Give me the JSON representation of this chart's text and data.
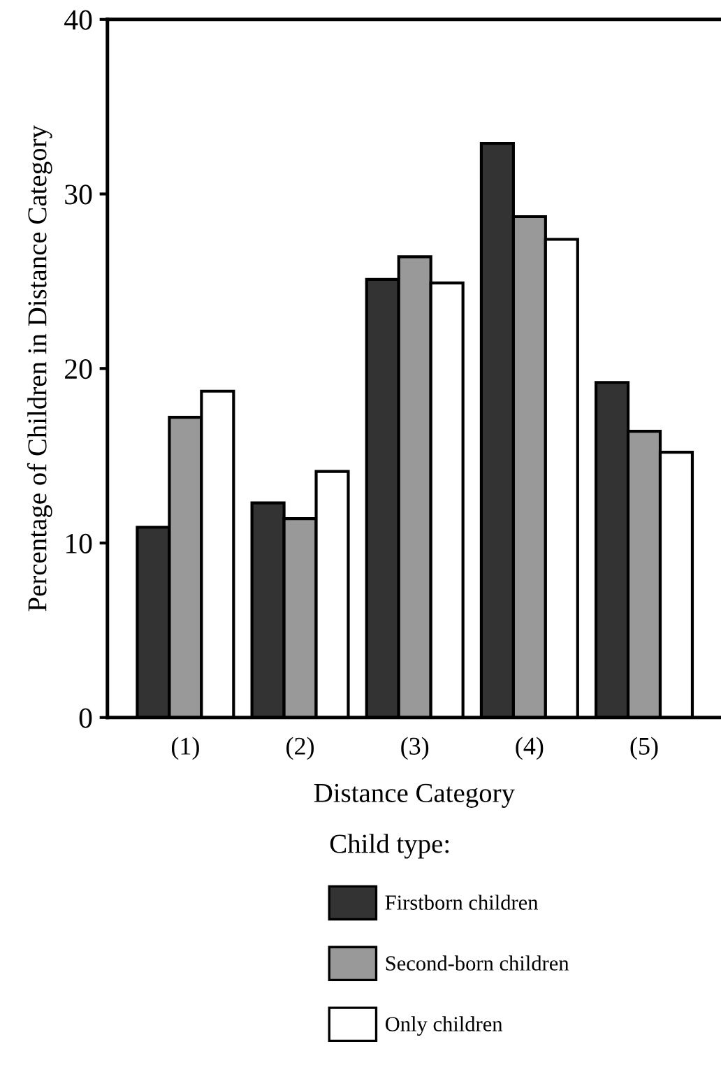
{
  "chart_data": {
    "type": "bar",
    "categories": [
      "(1)",
      "(2)",
      "(3)",
      "(4)",
      "(5)"
    ],
    "series": [
      {
        "name": "Firstborn children",
        "color": "#333333",
        "values": [
          10.9,
          12.3,
          25.1,
          32.9,
          19.2
        ]
      },
      {
        "name": "Second-born children",
        "color": "#999999",
        "values": [
          17.2,
          11.4,
          26.4,
          28.7,
          16.4
        ]
      },
      {
        "name": "Only children",
        "color": "#ffffff",
        "values": [
          18.7,
          14.1,
          24.9,
          27.4,
          15.2
        ]
      }
    ],
    "xlabel": "Distance Category",
    "ylabel": "Percentage of Children in Distance Category",
    "legend_title": "Child type:",
    "legend": "bottom",
    "ylim": [
      0,
      40
    ],
    "yticks": [
      0,
      10,
      20,
      30,
      40
    ],
    "grid": false
  }
}
